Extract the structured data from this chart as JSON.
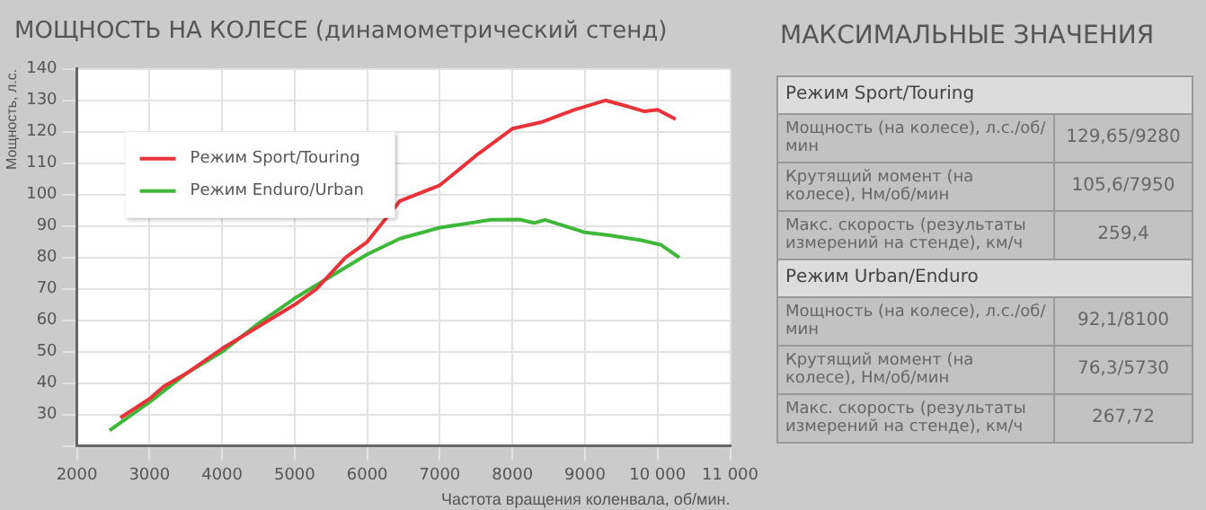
{
  "chart_data": [
    {
      "type": "line",
      "title": "МОЩНОСТЬ НА КОЛЕСЕ (динамометрический стенд)",
      "xlabel": "Частота вращения коленвала, об/мин.",
      "ylabel": "Мощность, л.с.",
      "xlim": [
        2000,
        11000
      ],
      "xticks": [
        2000,
        3000,
        4000,
        5000,
        6000,
        7000,
        8000,
        9000,
        {
          "value": 10000,
          "label": "10 000"
        },
        {
          "value": 11000,
          "label": "11 000"
        }
      ],
      "ylim": [
        20,
        140
      ],
      "yticks": [
        {
          "value": 20,
          "label": null
        },
        30,
        40,
        50,
        60,
        70,
        80,
        90,
        100,
        110,
        120,
        130,
        140
      ],
      "grid": true,
      "legend": "top left",
      "line_style": "solid",
      "marker": "none",
      "series": [
        {
          "name": "Режим Sport/Touring",
          "color": "#e8333a",
          "x": [
            2600,
            2800,
            3000,
            3200,
            3500,
            4000,
            4500,
            5000,
            5300,
            5500,
            5700,
            6000,
            6450,
            7000,
            7530,
            8000,
            8390,
            8850,
            9280,
            9600,
            9820,
            10000,
            10250
          ],
          "values": [
            29,
            32,
            35,
            39,
            43,
            51,
            58,
            65,
            70,
            75,
            80,
            85,
            98,
            103,
            113,
            121,
            123,
            127,
            130,
            128,
            126.5,
            127,
            124
          ]
        },
        {
          "name": "Режим Enduro/Urban",
          "color": "#3fb83a",
          "x": [
            2450,
            3000,
            3500,
            4000,
            4500,
            5000,
            5500,
            6000,
            6450,
            7000,
            7700,
            8100,
            8300,
            8450,
            9000,
            9350,
            9770,
            10050,
            10300
          ],
          "values": [
            25,
            34,
            43,
            50,
            59,
            67,
            74,
            81,
            86,
            89.5,
            92,
            92.1,
            91,
            92,
            88,
            87,
            85.5,
            84,
            80
          ]
        }
      ]
    },
    {
      "type": "other",
      "title": "МАКСИМАЛЬНЫЕ ЗНАЧЕНИЯ",
      "categories": [
        "Режим Sport/Touring",
        "Мощность (на колесе), л.с./об/мин",
        "Крутящий момент (на колесе), Нм/об/мин",
        "Макс. скорость (результаты измерений на стенде), км/ч",
        "Режим Urban/Enduro",
        "Мощность (на колесе), л.с./об/мин",
        "Крутящий момент (на колесе), Нм/об/мин",
        "Макс. скорость (результаты измерений на стенде), км/ч"
      ],
      "value_labels": [
        null,
        "129,65/9280",
        "105,6/7950",
        "259,4",
        null,
        "92,1/8100",
        "76,3/5730",
        "267,72"
      ]
    }
  ]
}
